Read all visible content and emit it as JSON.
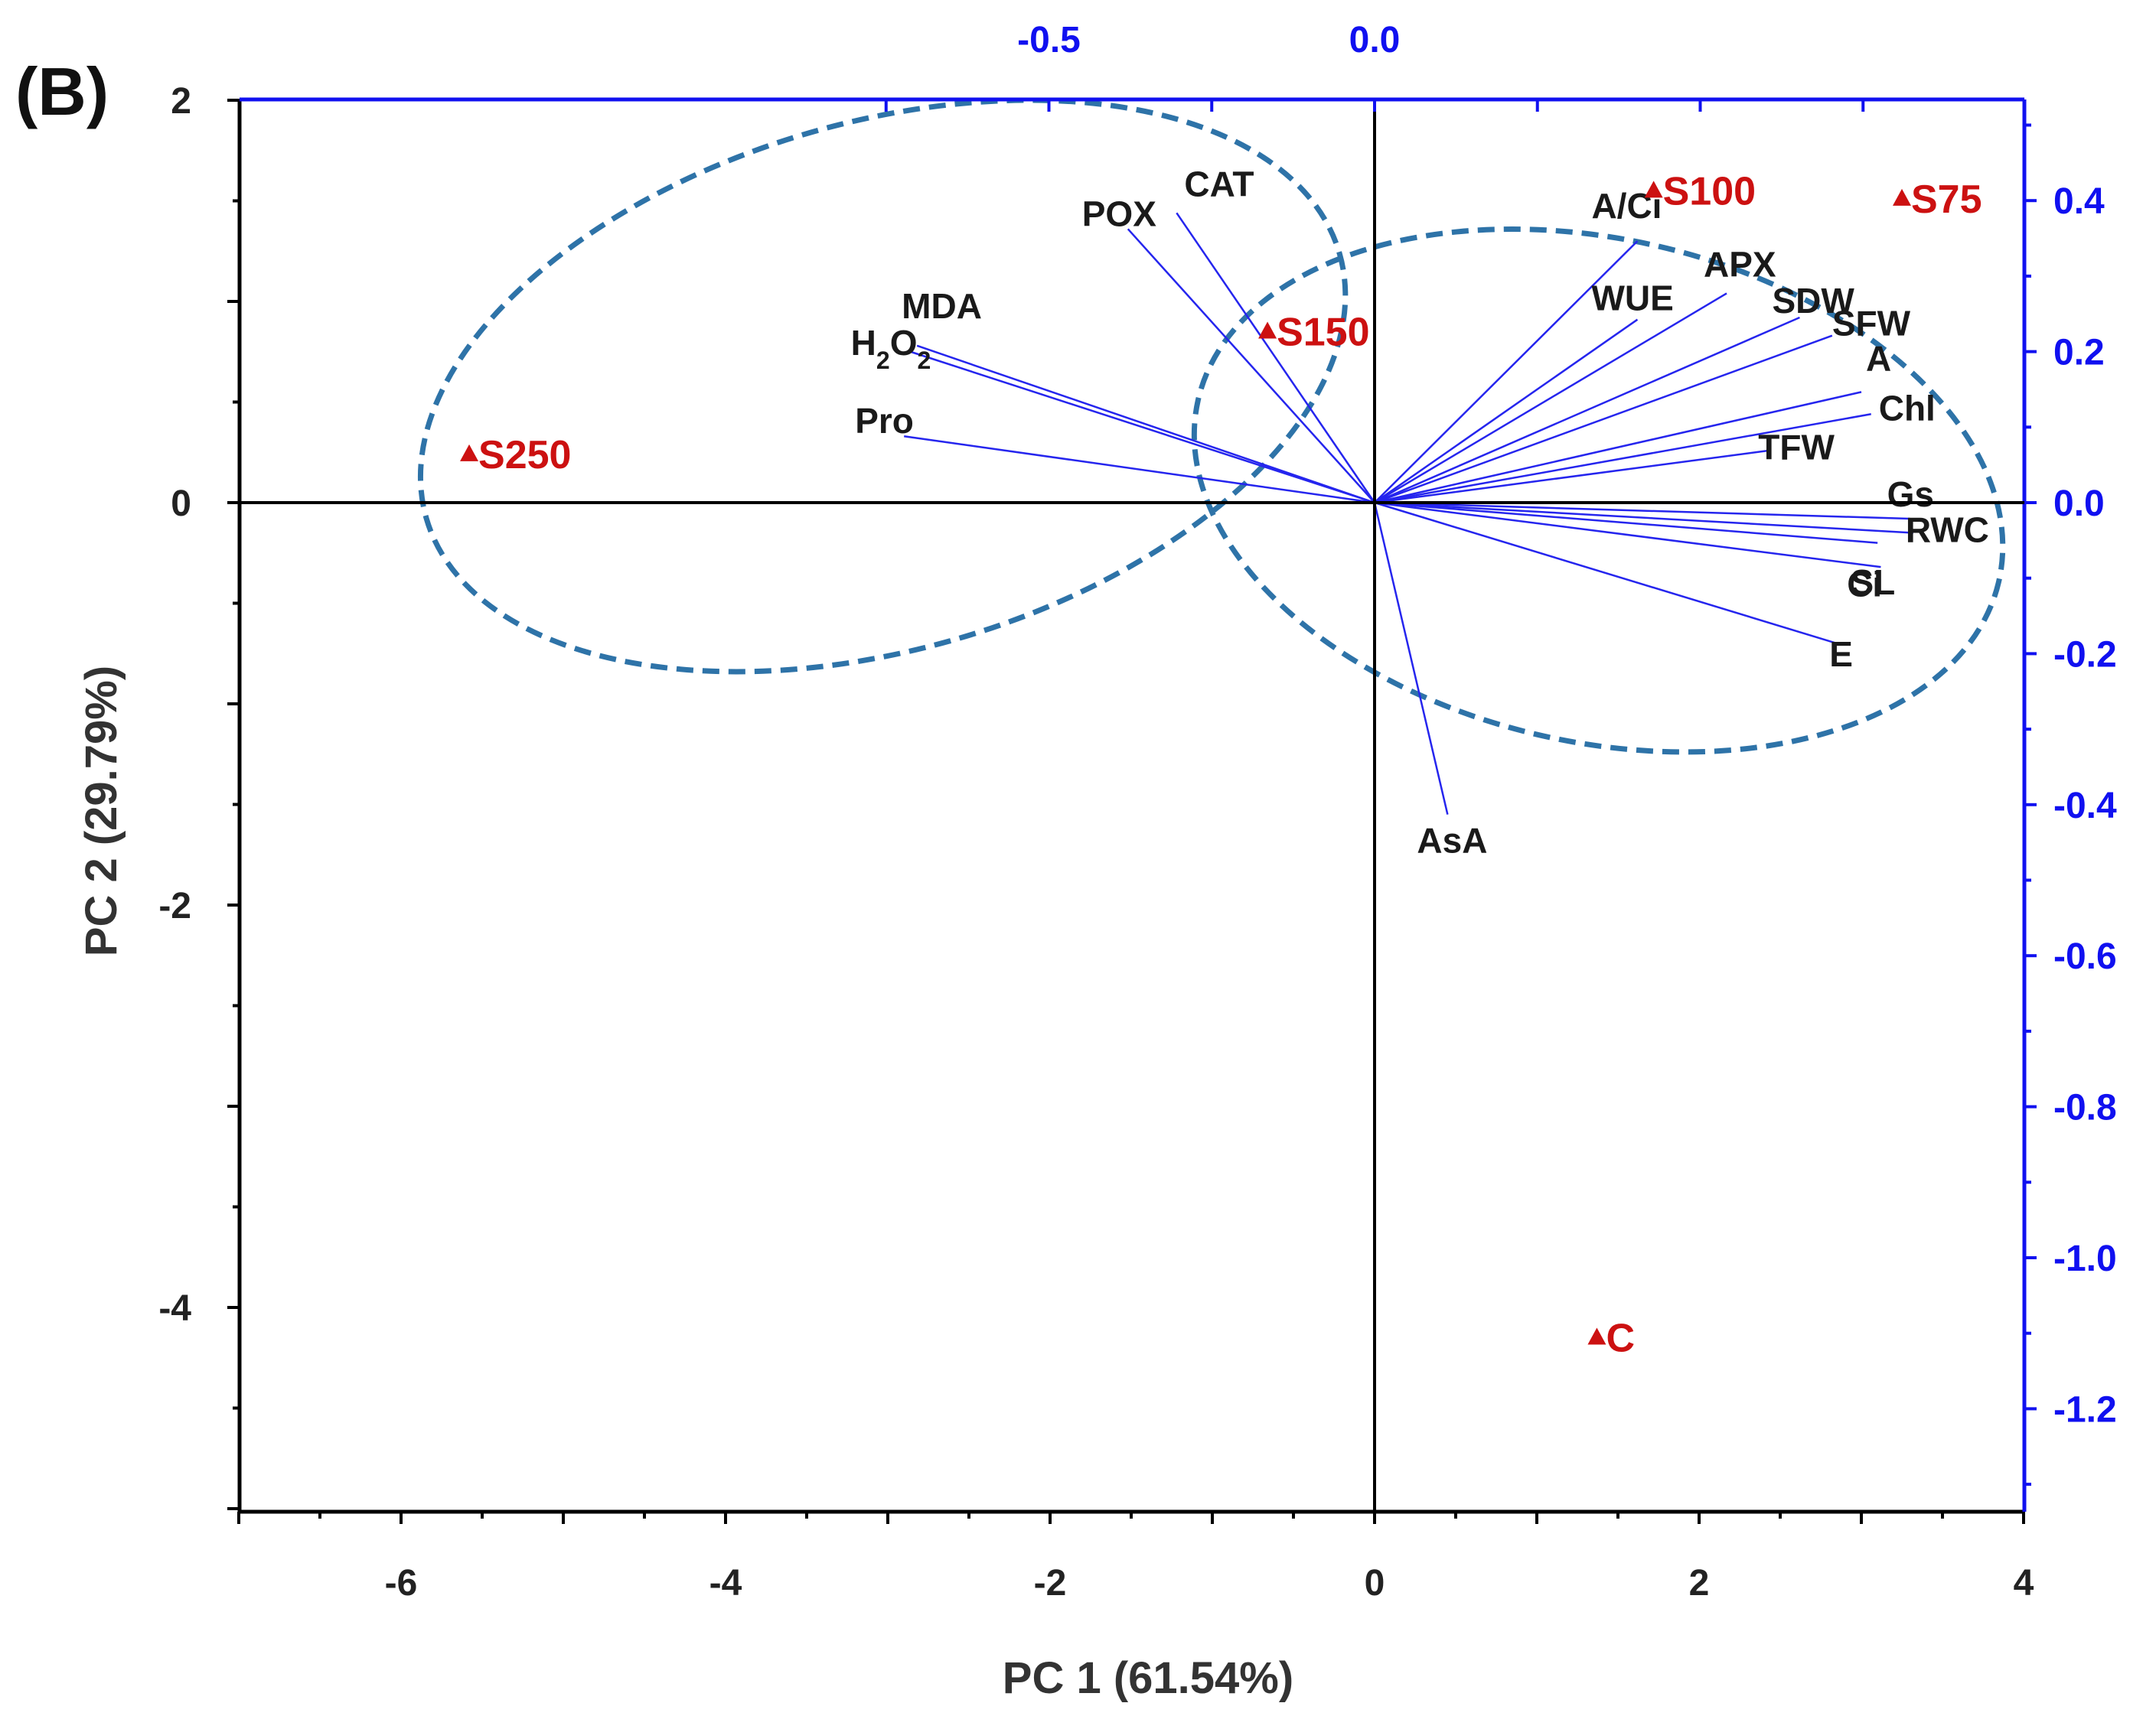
{
  "panel_label": "(B)",
  "chart_data": {
    "type": "biplot",
    "xlabel": "PC 1 (61.54%)",
    "ylabel": "PC 2 (29.79%)",
    "xlim": [
      -7,
      4
    ],
    "ylim": [
      -5,
      2
    ],
    "x_ticks": [
      -6,
      -4,
      -2,
      0,
      2,
      4
    ],
    "y_ticks": [
      2,
      0,
      -2,
      -4
    ],
    "secondary_axes": {
      "color": "#1010f0",
      "x_top_ticks": [
        {
          "value": -0.5,
          "label": "-0.5"
        },
        {
          "value": 0.0,
          "label": "0.0"
        }
      ],
      "y_right_ticks": [
        {
          "value": 0.4,
          "label": "0.4"
        },
        {
          "value": 0.2,
          "label": "0.2"
        },
        {
          "value": 0.0,
          "label": "0.0"
        },
        {
          "value": -0.2,
          "label": "-0.2"
        },
        {
          "value": -0.4,
          "label": "-0.4"
        },
        {
          "value": -0.6,
          "label": "-0.6"
        },
        {
          "value": -0.8,
          "label": "-0.8"
        },
        {
          "value": -1.0,
          "label": "-1.0"
        },
        {
          "value": -1.2,
          "label": "-1.2"
        }
      ]
    },
    "scores": [
      {
        "name": "S75",
        "x": 3.25,
        "y": 1.51
      },
      {
        "name": "S100",
        "x": 1.72,
        "y": 1.55
      },
      {
        "name": "S150",
        "x": -0.66,
        "y": 0.85
      },
      {
        "name": "S250",
        "x": -5.58,
        "y": 0.24
      },
      {
        "name": "C",
        "x": 1.37,
        "y": -4.15
      }
    ],
    "loadings": [
      {
        "name": "CAT",
        "x": -1.22,
        "y": 1.44
      },
      {
        "name": "POX",
        "x": -1.52,
        "y": 1.36
      },
      {
        "name": "MDA",
        "x": -2.82,
        "y": 0.78
      },
      {
        "name": "H2O2",
        "x": -2.86,
        "y": 0.75
      },
      {
        "name": "Pro",
        "x": -2.9,
        "y": 0.33
      },
      {
        "name": "A/Ci",
        "x": 1.62,
        "y": 1.3
      },
      {
        "name": "WUE",
        "x": 1.62,
        "y": 0.91
      },
      {
        "name": "APX",
        "x": 2.17,
        "y": 1.04
      },
      {
        "name": "SDW",
        "x": 2.62,
        "y": 0.92
      },
      {
        "name": "SFW",
        "x": 2.82,
        "y": 0.83
      },
      {
        "name": "A",
        "x": 3.0,
        "y": 0.55
      },
      {
        "name": "Chl",
        "x": 3.06,
        "y": 0.44
      },
      {
        "name": "TFW",
        "x": 2.44,
        "y": 0.26
      },
      {
        "name": "Gs",
        "x": 3.3,
        "y": -0.08
      },
      {
        "name": "RWC",
        "x": 3.32,
        "y": -0.15
      },
      {
        "name": "SL",
        "x": 3.12,
        "y": -0.32
      },
      {
        "name": "Ci",
        "x": 3.1,
        "y": -0.2
      },
      {
        "name": "E",
        "x": 2.85,
        "y": -0.7
      },
      {
        "name": "AsA",
        "x": 0.45,
        "y": -1.55
      }
    ],
    "ellipses": [
      {
        "cx": -3.03,
        "cy": 0.58,
        "rx": 2.93,
        "ry": 1.31,
        "rotation_deg": 16.2
      },
      {
        "cx": 1.38,
        "cy": 0.06,
        "rx": 2.53,
        "ry": 1.25,
        "rotation_deg": -12.7
      }
    ],
    "score_color": "#cc1111",
    "loading_color": "#2525ee",
    "ellipse_color": "#2e73a8",
    "grid": false
  }
}
